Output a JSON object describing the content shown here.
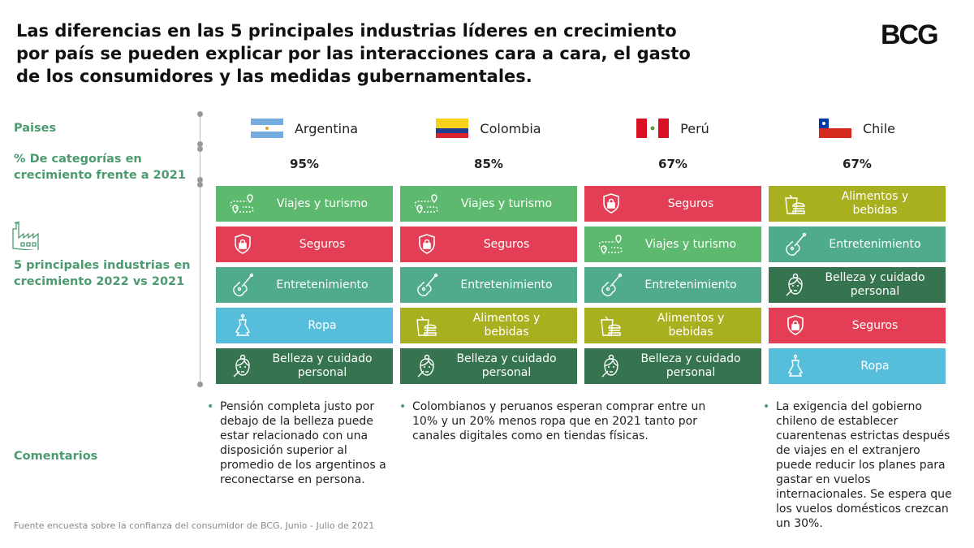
{
  "title": "Las diferencias en las 5 principales industrias líderes en crecimiento por país se pueden explicar por las interacciones cara a cara, el gasto de los consumidores y las medidas gubernamentales.",
  "logo": "BCG",
  "labels": {
    "countries": "Paises",
    "pct": "% De categorías en crecimiento frente a 2021",
    "top5": "5 principales industrias en crecimiento 2022 vs 2021",
    "comments": "Comentarios"
  },
  "colors": {
    "travel": "#5cb96e",
    "insurance": "#e33e55",
    "entertainment": "#4faa8e",
    "clothing": "#56bedb",
    "food": "#a9b01f",
    "beauty": "#35744f",
    "label": "#4c9a6f"
  },
  "countries": [
    {
      "name": "Argentina",
      "pct": "95%",
      "industries": [
        {
          "label": "Viajes y turismo",
          "icon": "travel-icon",
          "type": "travel"
        },
        {
          "label": "Seguros",
          "icon": "shield-lock-icon",
          "type": "insurance"
        },
        {
          "label": "Entretenimiento",
          "icon": "violin-icon",
          "type": "entertainment"
        },
        {
          "label": "Ropa",
          "icon": "dress-icon",
          "type": "clothing"
        },
        {
          "label": "Belleza y cuidado personal",
          "icon": "face-icon",
          "type": "beauty"
        }
      ]
    },
    {
      "name": "Colombia",
      "pct": "85%",
      "industries": [
        {
          "label": "Viajes y turismo",
          "icon": "travel-icon",
          "type": "travel"
        },
        {
          "label": "Seguros",
          "icon": "shield-lock-icon",
          "type": "insurance"
        },
        {
          "label": "Entretenimiento",
          "icon": "violin-icon",
          "type": "entertainment"
        },
        {
          "label": "Alimentos y bebidas",
          "icon": "food-icon",
          "type": "food"
        },
        {
          "label": "Belleza y cuidado personal",
          "icon": "face-icon",
          "type": "beauty"
        }
      ]
    },
    {
      "name": "Perú",
      "pct": "67%",
      "industries": [
        {
          "label": "Seguros",
          "icon": "shield-lock-icon",
          "type": "insurance"
        },
        {
          "label": "Viajes y turismo",
          "icon": "travel-icon",
          "type": "travel"
        },
        {
          "label": "Entretenimiento",
          "icon": "violin-icon",
          "type": "entertainment"
        },
        {
          "label": "Alimentos y bebidas",
          "icon": "food-icon",
          "type": "food"
        },
        {
          "label": "Belleza y cuidado personal",
          "icon": "face-icon",
          "type": "beauty"
        }
      ]
    },
    {
      "name": "Chile",
      "pct": "67%",
      "industries": [
        {
          "label": "Alimentos y bebidas",
          "icon": "food-icon",
          "type": "food"
        },
        {
          "label": "Entretenimiento",
          "icon": "violin-icon",
          "type": "entertainment"
        },
        {
          "label": "Belleza y cuidado personal",
          "icon": "face-icon",
          "type": "beauty"
        },
        {
          "label": "Seguros",
          "icon": "shield-lock-icon",
          "type": "insurance"
        },
        {
          "label": "Ropa",
          "icon": "dress-icon",
          "type": "clothing"
        }
      ]
    }
  ],
  "comments": [
    "Pensión completa justo por debajo de la belleza puede estar relacionado con una disposición superior al promedio de los argentinos a reconectarse en persona.",
    "Colombianos y peruanos esperan comprar entre un 10% y un 20% menos ropa que en 2021 tanto por canales digitales como en tiendas físicas.",
    "La exigencia del gobierno chileno de establecer cuarentenas estrictas después de viajes en el extranjero puede reducir los planes para gastar en vuelos internacionales. Se espera que los vuelos domésticos crezcan un 30%."
  ],
  "source": "Fuente encuesta sobre la confianza del consumidor de BCG, Junio - Julio de 2021"
}
